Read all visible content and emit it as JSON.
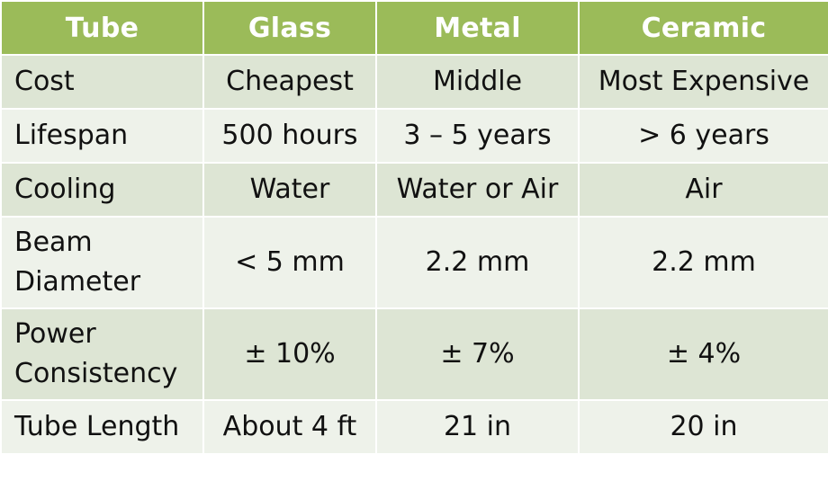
{
  "chart_data": {
    "type": "table",
    "columns": [
      "Tube",
      "Glass",
      "Metal",
      "Ceramic"
    ],
    "rows": [
      [
        "Cost",
        "Cheapest",
        "Middle",
        "Most Expensive"
      ],
      [
        "Lifespan",
        "500 hours",
        "3 – 5 years",
        "> 6 years"
      ],
      [
        "Cooling",
        "Water",
        "Water or Air",
        "Air"
      ],
      [
        "Beam Diameter",
        "< 5 mm",
        "2.2 mm",
        "2.2 mm"
      ],
      [
        "Power Consistency",
        "± 10%",
        "± 7%",
        "± 4%"
      ],
      [
        "Tube Length",
        "About 4 ft",
        "21 in",
        "20 in"
      ]
    ]
  },
  "colors": {
    "header_bg": "#9bbb59",
    "header_text": "#ffffff",
    "row_odd_bg": "#dde5d4",
    "row_even_bg": "#eef2ea",
    "cell_text": "#111111"
  }
}
